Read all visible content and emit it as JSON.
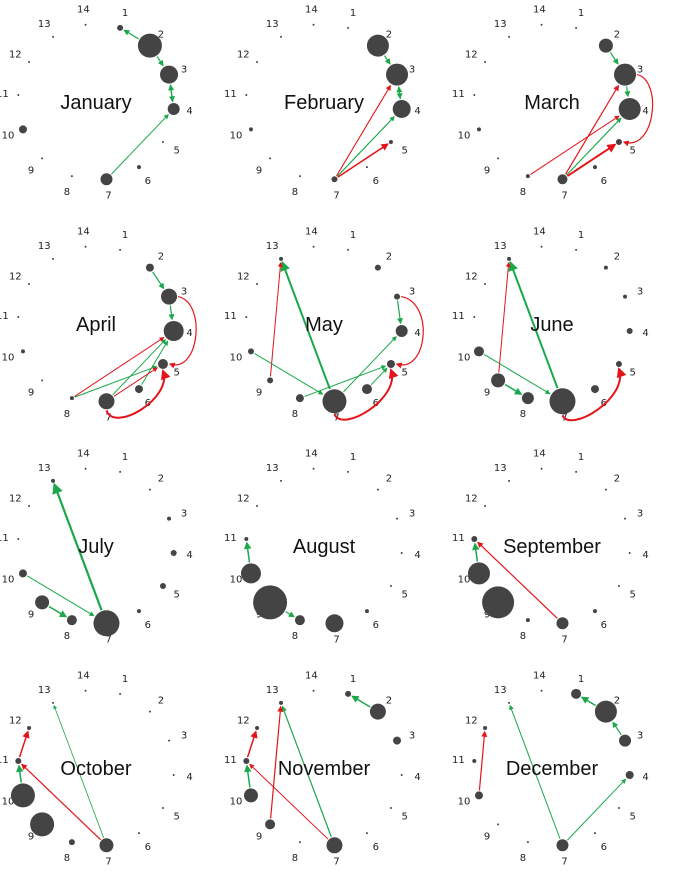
{
  "colors": {
    "node": "#444444",
    "green_arrow": "#1aa84a",
    "red_arrow": "#e5141a",
    "label": "#222222"
  },
  "position_labels": [
    "1",
    "2",
    "3",
    "4",
    "5",
    "6",
    "7",
    "8",
    "9",
    "10",
    "11",
    "12",
    "13",
    "14"
  ],
  "panels": [
    {
      "month": "January",
      "nodes": [
        [
          1,
          3
        ],
        [
          2,
          12
        ],
        [
          3,
          9
        ],
        [
          4,
          6
        ],
        [
          6,
          2
        ],
        [
          7,
          6
        ],
        [
          10,
          4
        ]
      ],
      "arrows": [
        [
          2,
          1,
          "green",
          1.2
        ],
        [
          2,
          3,
          "green",
          1.2
        ],
        [
          3,
          4,
          "green",
          1.2
        ],
        [
          4,
          3,
          "green",
          1.2
        ],
        [
          7,
          4,
          "green",
          1
        ]
      ]
    },
    {
      "month": "February",
      "nodes": [
        [
          2,
          11
        ],
        [
          3,
          11
        ],
        [
          4,
          9
        ],
        [
          5,
          2
        ],
        [
          7,
          3
        ],
        [
          10,
          2
        ]
      ],
      "arrows": [
        [
          2,
          3,
          "green",
          1.2
        ],
        [
          3,
          4,
          "green",
          1.2
        ],
        [
          4,
          3,
          "green",
          1.2
        ],
        [
          7,
          3,
          "red",
          1.1
        ],
        [
          7,
          4,
          "green",
          1
        ],
        [
          7,
          4,
          "green",
          1
        ],
        [
          7,
          5,
          "red",
          1.5
        ]
      ]
    },
    {
      "month": "March",
      "nodes": [
        [
          2,
          7
        ],
        [
          3,
          11
        ],
        [
          4,
          11
        ],
        [
          5,
          3
        ],
        [
          6,
          2
        ],
        [
          7,
          5
        ],
        [
          8,
          2
        ],
        [
          10,
          2
        ]
      ],
      "arrows": [
        [
          2,
          3,
          "green",
          1.2
        ],
        [
          3,
          4,
          "green",
          1.2
        ],
        [
          7,
          3,
          "red",
          1.2
        ],
        [
          7,
          4,
          "green",
          1
        ],
        [
          7,
          4,
          "green",
          1
        ],
        [
          7,
          5,
          "red",
          1.8
        ],
        [
          7,
          5,
          "red",
          1.8
        ],
        [
          8,
          4,
          "red",
          1
        ],
        [
          3,
          5,
          "red-curve",
          1.2
        ]
      ]
    },
    {
      "month": "April",
      "nodes": [
        [
          2,
          4
        ],
        [
          3,
          8
        ],
        [
          4,
          10
        ],
        [
          5,
          5
        ],
        [
          6,
          4
        ],
        [
          7,
          8
        ],
        [
          8,
          2
        ],
        [
          10,
          2
        ]
      ],
      "arrows": [
        [
          2,
          3,
          "green",
          1.2
        ],
        [
          3,
          4,
          "green",
          1.2
        ],
        [
          7,
          4,
          "green",
          1
        ],
        [
          6,
          4,
          "green",
          1
        ],
        [
          8,
          4,
          "red",
          1
        ],
        [
          8,
          5,
          "green",
          1
        ],
        [
          7,
          5,
          "red",
          1
        ],
        [
          3,
          5,
          "red-curve",
          1.2
        ],
        [
          7,
          5,
          "red-curve-low",
          2
        ]
      ]
    },
    {
      "month": "May",
      "nodes": [
        [
          2,
          3
        ],
        [
          3,
          3
        ],
        [
          4,
          6
        ],
        [
          5,
          4
        ],
        [
          6,
          5
        ],
        [
          7,
          12
        ],
        [
          8,
          4
        ],
        [
          9,
          3
        ],
        [
          10,
          3
        ],
        [
          13,
          2
        ]
      ],
      "arrows": [
        [
          3,
          4,
          "green",
          1.2
        ],
        [
          7,
          13,
          "green",
          2
        ],
        [
          9,
          13,
          "red",
          1
        ],
        [
          10,
          7,
          "green",
          1
        ],
        [
          7,
          4,
          "green",
          1
        ],
        [
          8,
          5,
          "green",
          1
        ],
        [
          6,
          5,
          "green",
          1
        ],
        [
          3,
          5,
          "red-curve",
          1.2
        ],
        [
          7,
          5,
          "red-curve-low",
          2
        ]
      ]
    },
    {
      "month": "June",
      "nodes": [
        [
          2,
          2
        ],
        [
          3,
          2
        ],
        [
          4,
          3
        ],
        [
          5,
          3
        ],
        [
          6,
          4
        ],
        [
          7,
          13
        ],
        [
          8,
          6
        ],
        [
          9,
          7
        ],
        [
          10,
          5
        ],
        [
          13,
          2
        ]
      ],
      "arrows": [
        [
          7,
          13,
          "green",
          2
        ],
        [
          9,
          13,
          "red",
          1
        ],
        [
          10,
          7,
          "green",
          1
        ],
        [
          9,
          8,
          "green",
          1.5
        ],
        [
          7,
          5,
          "red-curve-low",
          2
        ]
      ]
    },
    {
      "month": "July",
      "nodes": [
        [
          3,
          2
        ],
        [
          4,
          3
        ],
        [
          5,
          3
        ],
        [
          6,
          2
        ],
        [
          7,
          13
        ],
        [
          8,
          5
        ],
        [
          9,
          7
        ],
        [
          10,
          4
        ],
        [
          13,
          2
        ]
      ],
      "arrows": [
        [
          7,
          13,
          "green",
          2.2
        ],
        [
          10,
          7,
          "green",
          1
        ],
        [
          9,
          8,
          "green",
          1.5
        ]
      ]
    },
    {
      "month": "August",
      "nodes": [
        [
          6,
          2
        ],
        [
          7,
          9
        ],
        [
          8,
          5
        ],
        [
          9,
          17
        ],
        [
          10,
          10
        ],
        [
          11,
          2
        ]
      ],
      "arrows": [
        [
          10,
          11,
          "green",
          1.5
        ],
        [
          9,
          8,
          "green",
          1.2
        ]
      ]
    },
    {
      "month": "September",
      "nodes": [
        [
          6,
          2
        ],
        [
          7,
          6
        ],
        [
          8,
          2
        ],
        [
          9,
          16
        ],
        [
          10,
          11
        ],
        [
          11,
          3
        ]
      ],
      "arrows": [
        [
          7,
          11,
          "red",
          1.2
        ],
        [
          10,
          11,
          "green",
          1.5
        ]
      ]
    },
    {
      "month": "October",
      "nodes": [
        [
          7,
          7
        ],
        [
          8,
          3
        ],
        [
          9,
          12
        ],
        [
          10,
          12
        ],
        [
          11,
          3
        ],
        [
          12,
          2
        ]
      ],
      "arrows": [
        [
          7,
          13,
          "green",
          0.8
        ],
        [
          7,
          11,
          "red",
          1.2
        ],
        [
          10,
          11,
          "green",
          1.5
        ],
        [
          11,
          12,
          "red",
          1.5
        ]
      ]
    },
    {
      "month": "November",
      "nodes": [
        [
          1,
          3
        ],
        [
          2,
          8
        ],
        [
          3,
          4
        ],
        [
          7,
          8
        ],
        [
          9,
          5
        ],
        [
          10,
          7
        ],
        [
          11,
          3
        ],
        [
          12,
          2
        ],
        [
          13,
          2
        ]
      ],
      "arrows": [
        [
          2,
          1,
          "green",
          1.5
        ],
        [
          7,
          13,
          "green",
          1.2
        ],
        [
          9,
          13,
          "red",
          1.2
        ],
        [
          7,
          11,
          "red",
          1
        ],
        [
          10,
          11,
          "green",
          1.5
        ],
        [
          11,
          12,
          "red",
          1.5
        ]
      ]
    },
    {
      "month": "December",
      "nodes": [
        [
          1,
          5
        ],
        [
          2,
          11
        ],
        [
          3,
          6
        ],
        [
          4,
          4
        ],
        [
          7,
          6
        ],
        [
          10,
          4
        ],
        [
          11,
          2
        ],
        [
          12,
          2
        ]
      ],
      "arrows": [
        [
          2,
          1,
          "green",
          1.5
        ],
        [
          3,
          2,
          "green",
          1.2
        ],
        [
          7,
          13,
          "green",
          1
        ],
        [
          7,
          4,
          "green",
          1
        ],
        [
          10,
          12,
          "red",
          1.2
        ]
      ]
    }
  ]
}
